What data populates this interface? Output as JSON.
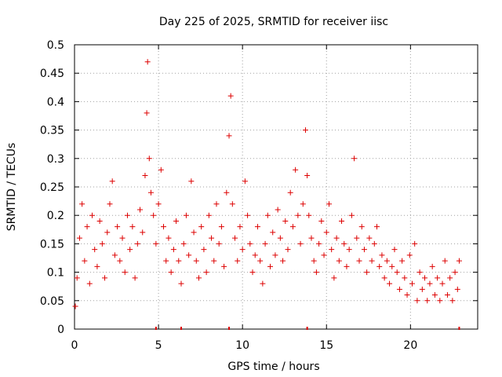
{
  "chart_data": {
    "type": "scatter",
    "title": "Day 225 of 2025, SRMTID for receiver iisc",
    "xlabel": "GPS time / hours",
    "ylabel": "SRMTID / TECUs",
    "xlim": [
      0,
      24
    ],
    "ylim": [
      0,
      0.5
    ],
    "x_ticks": [
      0,
      5,
      10,
      15,
      20
    ],
    "x_tick_labels": [
      "0",
      "5",
      "10",
      "15",
      "20"
    ],
    "y_ticks": [
      0,
      0.05,
      0.1,
      0.15,
      0.2,
      0.25,
      0.3,
      0.35,
      0.4,
      0.45,
      0.5
    ],
    "y_tick_labels": [
      "0",
      "0.05",
      "0.1",
      "0.15",
      "0.2",
      "0.25",
      "0.3",
      "0.35",
      "0.4",
      "0.45",
      "0.5"
    ],
    "grid": true,
    "marker": "plus",
    "color": "#dd0000",
    "series": [
      {
        "name": "SRMTID",
        "x": [
          0.05,
          0.15,
          0.3,
          0.45,
          0.6,
          0.75,
          0.9,
          1.05,
          1.2,
          1.35,
          1.5,
          1.65,
          1.8,
          1.95,
          2.1,
          2.25,
          2.4,
          2.55,
          2.7,
          2.85,
          3.0,
          3.15,
          3.3,
          3.45,
          3.6,
          3.75,
          3.9,
          4.05,
          4.2,
          4.3,
          4.35,
          4.45,
          4.55,
          4.7,
          4.85,
          5.0,
          5.15,
          5.3,
          5.45,
          5.6,
          5.75,
          5.9,
          6.05,
          6.2,
          6.35,
          6.5,
          6.65,
          6.8,
          6.95,
          7.1,
          7.25,
          7.4,
          7.55,
          7.7,
          7.85,
          8.0,
          8.15,
          8.3,
          8.45,
          8.6,
          8.75,
          8.9,
          9.05,
          9.2,
          9.3,
          9.4,
          9.55,
          9.7,
          9.85,
          10.0,
          10.15,
          10.3,
          10.45,
          10.6,
          10.75,
          10.9,
          11.05,
          11.2,
          11.35,
          11.5,
          11.65,
          11.8,
          11.95,
          12.1,
          12.25,
          12.4,
          12.55,
          12.7,
          12.85,
          13.0,
          13.15,
          13.3,
          13.45,
          13.6,
          13.75,
          13.85,
          13.95,
          14.1,
          14.25,
          14.4,
          14.55,
          14.7,
          14.85,
          15.0,
          15.15,
          15.3,
          15.45,
          15.6,
          15.75,
          15.9,
          16.05,
          16.2,
          16.35,
          16.5,
          16.65,
          16.8,
          16.95,
          17.1,
          17.25,
          17.4,
          17.55,
          17.7,
          17.85,
          18.0,
          18.15,
          18.3,
          18.45,
          18.6,
          18.75,
          18.9,
          19.05,
          19.2,
          19.35,
          19.5,
          19.65,
          19.8,
          19.95,
          20.1,
          20.25,
          20.4,
          20.55,
          20.7,
          20.85,
          21.0,
          21.15,
          21.3,
          21.45,
          21.6,
          21.75,
          21.9,
          22.05,
          22.2,
          22.35,
          22.5,
          22.65,
          22.8,
          22.9
        ],
        "y": [
          0.04,
          0.09,
          0.16,
          0.22,
          0.12,
          0.18,
          0.08,
          0.2,
          0.14,
          0.11,
          0.19,
          0.15,
          0.09,
          0.17,
          0.22,
          0.26,
          0.13,
          0.18,
          0.12,
          0.16,
          0.1,
          0.2,
          0.14,
          0.18,
          0.09,
          0.15,
          0.21,
          0.17,
          0.27,
          0.38,
          0.47,
          0.3,
          0.24,
          0.2,
          0.15,
          0.22,
          0.28,
          0.18,
          0.12,
          0.16,
          0.1,
          0.14,
          0.19,
          0.12,
          0.08,
          0.15,
          0.2,
          0.13,
          0.26,
          0.17,
          0.12,
          0.09,
          0.18,
          0.14,
          0.1,
          0.2,
          0.16,
          0.12,
          0.22,
          0.15,
          0.18,
          0.11,
          0.24,
          0.34,
          0.41,
          0.22,
          0.16,
          0.12,
          0.18,
          0.14,
          0.26,
          0.2,
          0.15,
          0.1,
          0.13,
          0.18,
          0.12,
          0.08,
          0.15,
          0.2,
          0.11,
          0.17,
          0.13,
          0.21,
          0.16,
          0.12,
          0.19,
          0.14,
          0.24,
          0.18,
          0.28,
          0.2,
          0.15,
          0.22,
          0.35,
          0.27,
          0.2,
          0.16,
          0.12,
          0.1,
          0.15,
          0.19,
          0.13,
          0.17,
          0.22,
          0.14,
          0.09,
          0.16,
          0.12,
          0.19,
          0.15,
          0.11,
          0.14,
          0.2,
          0.3,
          0.16,
          0.12,
          0.18,
          0.14,
          0.1,
          0.16,
          0.12,
          0.15,
          0.18,
          0.11,
          0.13,
          0.09,
          0.12,
          0.08,
          0.11,
          0.14,
          0.1,
          0.07,
          0.12,
          0.09,
          0.06,
          0.13,
          0.08,
          0.15,
          0.05,
          0.1,
          0.07,
          0.09,
          0.05,
          0.08,
          0.11,
          0.06,
          0.09,
          0.05,
          0.08,
          0.12,
          0.06,
          0.09,
          0.05,
          0.1,
          0.07,
          0.12
        ]
      }
    ],
    "axis_markers_x": [
      4.85,
      6.35,
      9.2,
      13.85,
      22.9
    ]
  }
}
